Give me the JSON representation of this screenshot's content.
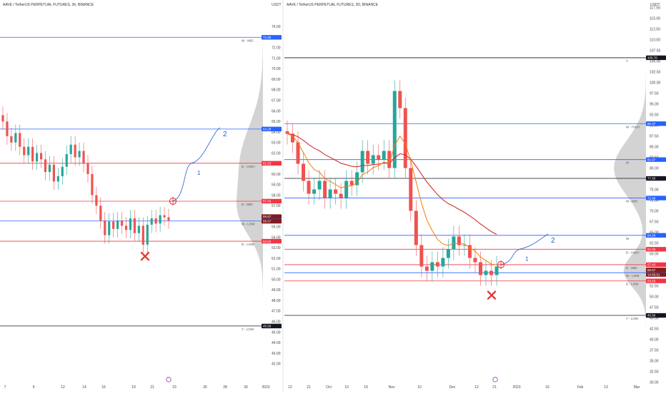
{
  "colors": {
    "up": "#26a69a",
    "down": "#ef5350",
    "ema_red": "#d32f2f",
    "ema_orange": "#f57c00",
    "blue_level": "#2962ff",
    "red_level": "#f23645",
    "black_level": "#131722",
    "annotation": "#1e5fd6",
    "x_mark": "#e53935"
  },
  "icons": {
    "cross": "x-mark-icon",
    "target": "crosshair-circle-icon",
    "event": "event-badge-icon"
  },
  "chart_data": [
    {
      "type": "candlestick",
      "title": "AAVE / TetherUS PERPETUAL FUTURES, 3h, BINANCE",
      "currency": "USDT",
      "ylim": [
        41,
        75
      ],
      "y_ticks": [
        "74.00",
        "73.00",
        "72.00",
        "71.00",
        "70.00",
        "69.00",
        "68.00",
        "67.00",
        "66.00",
        "65.00",
        "64.00",
        "63.00",
        "62.00",
        "61.00",
        "60.00",
        "59.00",
        "58.00",
        "57.00",
        "56.00",
        "55.00",
        "54.00",
        "53.00",
        "52.00",
        "51.00",
        "50.00",
        "49.00",
        "48.00",
        "47.00",
        "46.00",
        "45.00",
        "44.00",
        "43.00",
        "42.00"
      ],
      "x_ticks": [
        "7",
        "9",
        "12",
        "14",
        "16",
        "19",
        "21",
        "23",
        "26",
        "28",
        "30",
        "2023"
      ],
      "levels": [
        {
          "name": "W - MID",
          "value": 72.99,
          "tag": "72.99",
          "color": "blue"
        },
        {
          "name": "",
          "value": 64.28,
          "tag": "64.28",
          "color": "blue"
        },
        {
          "name": "D - HIGH",
          "value": 61.03,
          "tag": "61.03",
          "color": "red"
        },
        {
          "name": "D - MID",
          "value": 57.43,
          "tag": "57.43",
          "color": "red"
        },
        {
          "name": "W - LOW",
          "value": 55.55,
          "tag": "55.55",
          "color": "blue"
        },
        {
          "name": "D - LOW",
          "value": 53.63,
          "tag": "53.63",
          "color": "red"
        },
        {
          "name": "Y - LOW",
          "value": 45.58,
          "tag": "45.58",
          "color": "black"
        }
      ],
      "price_tags": [
        "55.57",
        "55.07"
      ],
      "annotation_labels": [
        "2",
        "1"
      ],
      "close_path": [
        {
          "x": 0,
          "y": 65.0
        },
        {
          "x": 1,
          "y": 63.6
        },
        {
          "x": 2,
          "y": 63.0
        },
        {
          "x": 3,
          "y": 63.9
        },
        {
          "x": 4,
          "y": 62.6
        },
        {
          "x": 5,
          "y": 61.8
        },
        {
          "x": 6,
          "y": 62.6
        },
        {
          "x": 7,
          "y": 61.2
        },
        {
          "x": 8,
          "y": 62.0
        },
        {
          "x": 9,
          "y": 61.4
        },
        {
          "x": 10,
          "y": 60.2
        },
        {
          "x": 11,
          "y": 60.9
        },
        {
          "x": 12,
          "y": 59.3
        },
        {
          "x": 13,
          "y": 59.8
        },
        {
          "x": 14,
          "y": 60.7
        },
        {
          "x": 15,
          "y": 61.9
        },
        {
          "x": 16,
          "y": 62.8
        },
        {
          "x": 17,
          "y": 61.6
        },
        {
          "x": 18,
          "y": 62.2
        },
        {
          "x": 19,
          "y": 61.0
        },
        {
          "x": 20,
          "y": 60.0
        },
        {
          "x": 21,
          "y": 58.0
        },
        {
          "x": 22,
          "y": 57.0
        },
        {
          "x": 23,
          "y": 55.6
        },
        {
          "x": 24,
          "y": 54.2
        },
        {
          "x": 25,
          "y": 55.5
        },
        {
          "x": 26,
          "y": 54.8
        },
        {
          "x": 27,
          "y": 55.6
        },
        {
          "x": 28,
          "y": 55.1
        },
        {
          "x": 29,
          "y": 54.7
        },
        {
          "x": 30,
          "y": 55.8
        },
        {
          "x": 31,
          "y": 54.4
        },
        {
          "x": 32,
          "y": 55.1
        },
        {
          "x": 33,
          "y": 53.3
        },
        {
          "x": 34,
          "y": 55.2
        },
        {
          "x": 35,
          "y": 55.8
        },
        {
          "x": 36,
          "y": 55.3
        },
        {
          "x": 37,
          "y": 56.1
        },
        {
          "x": 38,
          "y": 55.9
        },
        {
          "x": 39,
          "y": 55.6
        }
      ]
    },
    {
      "type": "candlestick",
      "title": "AAVE / TetherUS PERPETUAL FUTURES, 3D, BINANCE",
      "currency": "USDT",
      "ylim": [
        30,
        118
      ],
      "y_ticks": [
        "117.50",
        "115.00",
        "112.50",
        "110.00",
        "107.50",
        "105.00",
        "102.50",
        "100.00",
        "97.50",
        "95.00",
        "92.50",
        "90.00",
        "87.50",
        "85.00",
        "82.50",
        "80.00",
        "77.50",
        "75.00",
        "72.50",
        "70.00",
        "67.50",
        "65.00",
        "62.50",
        "60.00",
        "57.50",
        "55.00",
        "52.50",
        "50.00",
        "47.50",
        "45.00",
        "42.50",
        "40.00",
        "37.50",
        "35.00",
        "32.50",
        "30.00"
      ],
      "x_ticks": [
        "12",
        "21",
        "Oct",
        "10",
        "19",
        "Nov",
        "10",
        "Dec",
        "12",
        "21",
        "2023",
        "16",
        "Feb",
        "13",
        "Mar"
      ],
      "levels": [
        {
          "name": "Y",
          "value": 105.76,
          "tag": "105.76",
          "color": "black"
        },
        {
          "name": "W - HIGH",
          "value": 90.37,
          "tag": "90.37",
          "color": "blue"
        },
        {
          "name": "M",
          "value": 81.97,
          "tag": "81.97",
          "color": "blue"
        },
        {
          "name": "",
          "value": 77.58,
          "tag": "77.58",
          "color": "black"
        },
        {
          "name": "W - MID",
          "value": 72.99,
          "tag": "72.99",
          "color": "blue"
        },
        {
          "name": "W",
          "value": 64.28,
          "tag": "64.28",
          "color": "blue"
        },
        {
          "name": "D - HIGH",
          "value": 61.03,
          "tag": "61.03",
          "color": "red"
        },
        {
          "name": "D - MID",
          "value": 57.43,
          "tag": "57.43",
          "color": "red"
        },
        {
          "name": "W - LOW",
          "value": 55.55,
          "tag": "55.55",
          "color": "blue"
        },
        {
          "name": "D - LOW",
          "value": 53.63,
          "tag": "53.63",
          "color": "red"
        },
        {
          "name": "Y - LOW",
          "value": 45.58,
          "tag": "45.58",
          "color": "black"
        }
      ],
      "price_tags": [
        "55.57",
        "14:56:51"
      ],
      "annotation_labels": [
        "2",
        "1"
      ],
      "close_path": [
        {
          "x": 0,
          "y": 88
        },
        {
          "x": 1,
          "y": 86
        },
        {
          "x": 2,
          "y": 81
        },
        {
          "x": 3,
          "y": 77
        },
        {
          "x": 4,
          "y": 74
        },
        {
          "x": 5,
          "y": 75
        },
        {
          "x": 6,
          "y": 77
        },
        {
          "x": 7,
          "y": 73
        },
        {
          "x": 8,
          "y": 75
        },
        {
          "x": 9,
          "y": 74
        },
        {
          "x": 10,
          "y": 73
        },
        {
          "x": 11,
          "y": 77
        },
        {
          "x": 12,
          "y": 76
        },
        {
          "x": 13,
          "y": 79
        },
        {
          "x": 14,
          "y": 84
        },
        {
          "x": 15,
          "y": 81
        },
        {
          "x": 16,
          "y": 83
        },
        {
          "x": 17,
          "y": 82
        },
        {
          "x": 18,
          "y": 84
        },
        {
          "x": 19,
          "y": 80
        },
        {
          "x": 20,
          "y": 98
        },
        {
          "x": 21,
          "y": 94
        },
        {
          "x": 22,
          "y": 80
        },
        {
          "x": 23,
          "y": 70
        },
        {
          "x": 24,
          "y": 62
        },
        {
          "x": 25,
          "y": 57
        },
        {
          "x": 26,
          "y": 56
        },
        {
          "x": 27,
          "y": 58
        },
        {
          "x": 28,
          "y": 57
        },
        {
          "x": 29,
          "y": 59
        },
        {
          "x": 30,
          "y": 61
        },
        {
          "x": 31,
          "y": 64
        },
        {
          "x": 32,
          "y": 62
        },
        {
          "x": 33,
          "y": 62
        },
        {
          "x": 34,
          "y": 59
        },
        {
          "x": 35,
          "y": 58
        },
        {
          "x": 36,
          "y": 55
        },
        {
          "x": 37,
          "y": 56
        },
        {
          "x": 38,
          "y": 55
        },
        {
          "x": 39,
          "y": 57
        }
      ]
    }
  ]
}
